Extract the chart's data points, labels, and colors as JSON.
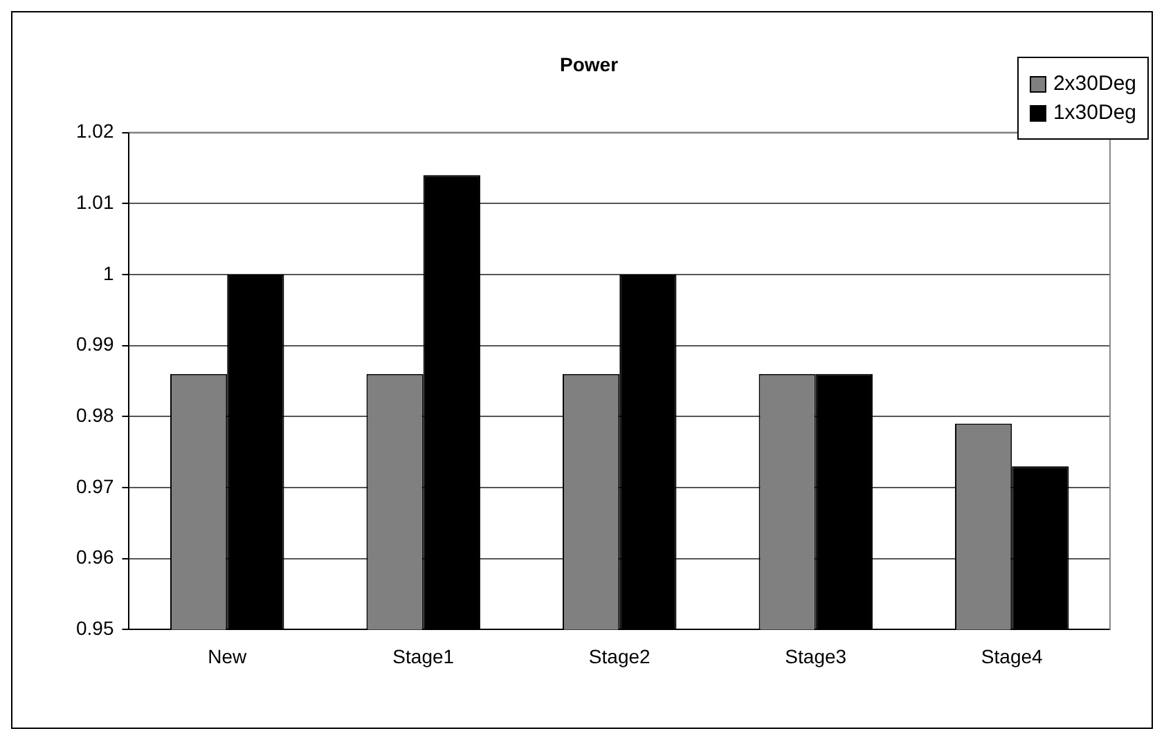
{
  "chart_data": {
    "type": "bar",
    "title": "Power",
    "categories": [
      "New",
      "Stage1",
      "Stage2",
      "Stage3",
      "Stage4"
    ],
    "series": [
      {
        "name": "2x30Deg",
        "color": "#808080",
        "values": [
          0.986,
          0.986,
          0.986,
          0.986,
          0.979
        ]
      },
      {
        "name": "1x30Deg",
        "color": "#000000",
        "values": [
          1.0,
          1.014,
          1.0,
          0.986,
          0.973
        ]
      }
    ],
    "ylim": [
      0.95,
      1.02
    ],
    "yticks": [
      0.95,
      0.96,
      0.97,
      0.98,
      0.99,
      1,
      1.01,
      1.02
    ],
    "grid": "y",
    "legend": "top right"
  }
}
